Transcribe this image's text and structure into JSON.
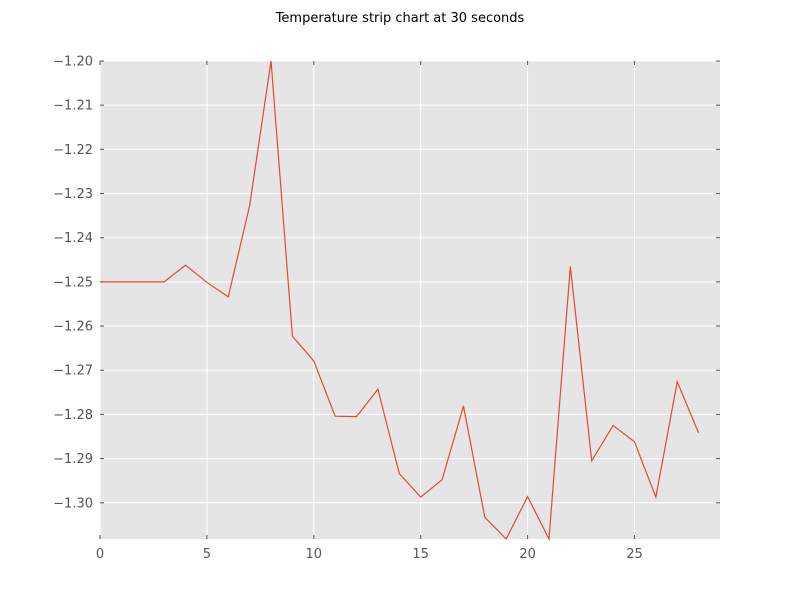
{
  "chart_data": {
    "type": "line",
    "title": "Temperature strip chart at 30 seconds",
    "xlabel": "",
    "ylabel": "",
    "xlim": [
      0,
      29
    ],
    "ylim": [
      -1.3082,
      -1.2
    ],
    "xticks": [
      0,
      5,
      10,
      15,
      20,
      25
    ],
    "yticks": [
      -1.2,
      -1.21,
      -1.22,
      -1.23,
      -1.24,
      -1.25,
      -1.26,
      -1.27,
      -1.28,
      -1.29,
      -1.3
    ],
    "xtick_labels": [
      "0",
      "5",
      "10",
      "15",
      "20",
      "25"
    ],
    "ytick_labels": [
      "−1.20",
      "−1.21",
      "−1.22",
      "−1.23",
      "−1.24",
      "−1.25",
      "−1.26",
      "−1.27",
      "−1.28",
      "−1.29",
      "−1.30"
    ],
    "grid": true,
    "series": [
      {
        "color": "#e24a33",
        "x": [
          0,
          1,
          2,
          3,
          4,
          5,
          6,
          7,
          8,
          9,
          10,
          11,
          12,
          13,
          14,
          15,
          16,
          17,
          18,
          19,
          20,
          21,
          22,
          23,
          24,
          25,
          26,
          27,
          28
        ],
        "values": [
          -1.25,
          -1.25,
          -1.25,
          -1.25,
          -1.2462,
          -1.2501,
          -1.2534,
          -1.2327,
          -1.2,
          -1.2623,
          -1.2679,
          -1.2804,
          -1.2805,
          -1.2743,
          -1.2934,
          -1.2987,
          -1.2948,
          -1.2781,
          -1.3033,
          -1.3082,
          -1.2986,
          -1.3082,
          -1.2465,
          -1.2905,
          -1.2825,
          -1.2862,
          -1.2987,
          -1.2726,
          -1.2842
        ]
      }
    ]
  },
  "colors": {
    "plot_background": "#e5e5e5",
    "grid": "#ffffff",
    "line": "#e24a33",
    "tick_text": "#555555"
  }
}
